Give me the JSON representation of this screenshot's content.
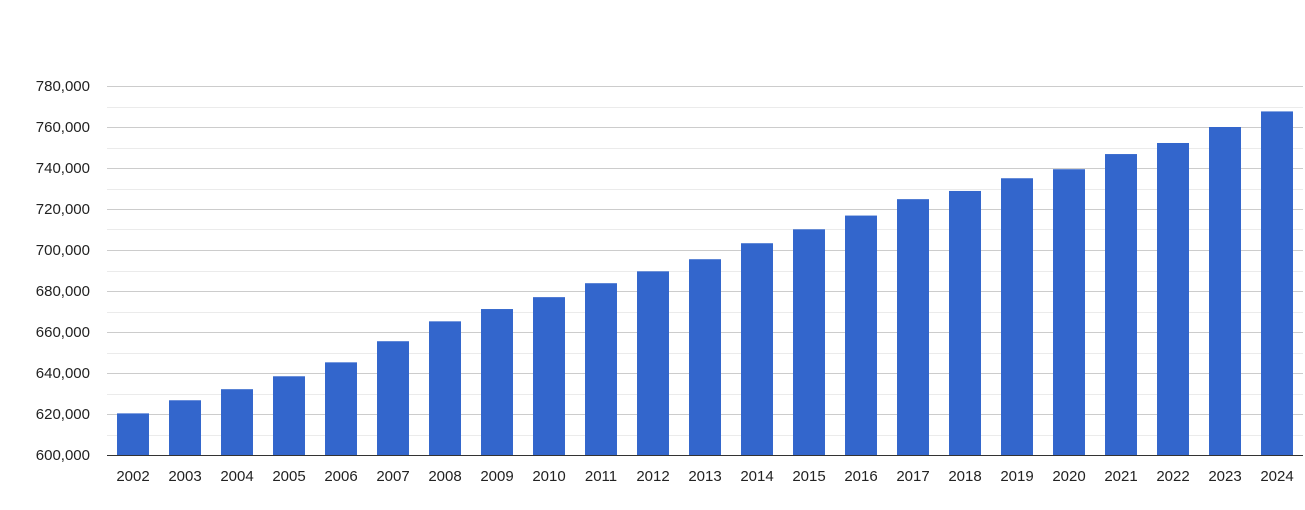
{
  "chart_data": {
    "type": "bar",
    "title": "",
    "xlabel": "",
    "ylabel": "",
    "categories": [
      "2002",
      "2003",
      "2004",
      "2005",
      "2006",
      "2007",
      "2008",
      "2009",
      "2010",
      "2011",
      "2012",
      "2013",
      "2014",
      "2015",
      "2016",
      "2017",
      "2018",
      "2019",
      "2020",
      "2021",
      "2022",
      "2023",
      "2024"
    ],
    "values": [
      620300,
      626700,
      632100,
      638400,
      645200,
      655500,
      665200,
      671200,
      677000,
      683800,
      689600,
      695500,
      703300,
      710100,
      716800,
      724800,
      728800,
      735000,
      739400,
      746800,
      752200,
      760000,
      767600
    ],
    "ylim": [
      600000,
      780000
    ],
    "yticks": [
      600000,
      620000,
      640000,
      660000,
      680000,
      700000,
      720000,
      740000,
      760000,
      780000
    ],
    "ytick_labels": [
      "600,000",
      "620,000",
      "640,000",
      "660,000",
      "680,000",
      "700,000",
      "720,000",
      "740,000",
      "760,000",
      "780,000"
    ],
    "grid": true,
    "legend": "none",
    "colors": {
      "bar": "#3366cc",
      "major_grid": "#cccccc",
      "minor_grid": "#ebebeb",
      "baseline": "#333333",
      "text": "#222222"
    }
  }
}
